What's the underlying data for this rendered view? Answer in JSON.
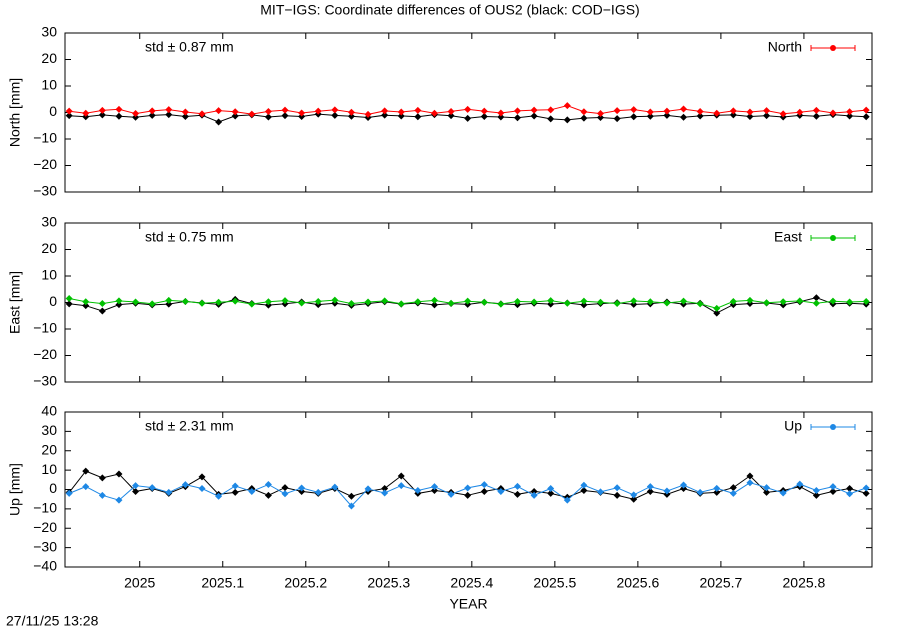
{
  "title": "MIT−IGS: Coordinate differences of OUS2 (black: COD−IGS)",
  "timestamp": "27/11/25 13:28",
  "chart_data": [
    {
      "type": "line",
      "ylabel": "North [mm]",
      "annotation": "std ± 0.87 mm",
      "annotation_color": "#ff0000",
      "show_xtick_labels": false,
      "x": [
        2024.915,
        2024.935,
        2024.955,
        2024.975,
        2024.995,
        2025.015,
        2025.035,
        2025.055,
        2025.075,
        2025.095,
        2025.115,
        2025.135,
        2025.155,
        2025.175,
        2025.195,
        2025.215,
        2025.235,
        2025.255,
        2025.275,
        2025.295,
        2025.315,
        2025.335,
        2025.355,
        2025.375,
        2025.395,
        2025.415,
        2025.435,
        2025.455,
        2025.475,
        2025.495,
        2025.515,
        2025.535,
        2025.555,
        2025.575,
        2025.595,
        2025.615,
        2025.635,
        2025.655,
        2025.675,
        2025.695,
        2025.715,
        2025.735,
        2025.755,
        2025.775,
        2025.795,
        2025.815,
        2025.835,
        2025.855,
        2025.875
      ],
      "series": [
        {
          "color": "#000000",
          "values": [
            -1.2,
            -1.6,
            -0.9,
            -1.4,
            -1.8,
            -1.1,
            -0.8,
            -1.5,
            -1.0,
            -3.6,
            -1.3,
            -0.9,
            -1.7,
            -1.2,
            -1.5,
            -0.6,
            -1.1,
            -1.4,
            -1.9,
            -1.0,
            -1.3,
            -1.6,
            -0.8,
            -1.2,
            -2.2,
            -1.5,
            -1.7,
            -2.0,
            -1.3,
            -2.4,
            -2.8,
            -2.1,
            -1.9,
            -2.3,
            -1.6,
            -1.4,
            -1.1,
            -1.8,
            -1.3,
            -1.0,
            -0.9,
            -1.5,
            -1.2,
            -1.7,
            -1.1,
            -1.4,
            -0.8,
            -1.3,
            -1.6
          ]
        },
        {
          "name": "North",
          "color": "#ff0000",
          "values": [
            0.5,
            -0.3,
            0.8,
            1.2,
            -0.4,
            0.6,
            1.1,
            0.2,
            -0.5,
            0.7,
            0.3,
            -0.6,
            0.4,
            0.9,
            -0.2,
            0.5,
            1.0,
            0.1,
            -0.7,
            0.6,
            0.2,
            0.8,
            -0.3,
            0.4,
            1.2,
            0.5,
            -0.2,
            0.6,
            0.9,
            1.0,
            2.6,
            0.3,
            -0.4,
            0.7,
            1.1,
            0.2,
            0.5,
            1.3,
            0.4,
            -0.3,
            0.6,
            0.2,
            0.7,
            -0.5,
            0.1,
            0.8,
            -0.2,
            0.3,
            0.9
          ]
        }
      ],
      "xlim": [
        2024.91,
        2025.882
      ],
      "xticks": [
        2025,
        2025.1,
        2025.2,
        2025.3,
        2025.4,
        2025.5,
        2025.6,
        2025.7,
        2025.8
      ],
      "ylim": [
        -30,
        30
      ],
      "yticks": [
        {
          "value": -30,
          "label": "−30"
        },
        {
          "value": -20,
          "label": "−20"
        },
        {
          "value": -10,
          "label": "−10"
        },
        0,
        10,
        20,
        30
      ]
    },
    {
      "type": "line",
      "ylabel": "East [mm]",
      "annotation": "std ± 0.75 mm",
      "annotation_color": "#00c000",
      "show_xtick_labels": false,
      "x": [
        2024.915,
        2024.935,
        2024.955,
        2024.975,
        2024.995,
        2025.015,
        2025.035,
        2025.055,
        2025.075,
        2025.095,
        2025.115,
        2025.135,
        2025.155,
        2025.175,
        2025.195,
        2025.215,
        2025.235,
        2025.255,
        2025.275,
        2025.295,
        2025.315,
        2025.335,
        2025.355,
        2025.375,
        2025.395,
        2025.415,
        2025.435,
        2025.455,
        2025.475,
        2025.495,
        2025.515,
        2025.535,
        2025.555,
        2025.575,
        2025.595,
        2025.615,
        2025.635,
        2025.655,
        2025.675,
        2025.695,
        2025.715,
        2025.735,
        2025.755,
        2025.775,
        2025.795,
        2025.815,
        2025.835,
        2025.855,
        2025.875
      ],
      "series": [
        {
          "color": "#000000",
          "values": [
            -0.5,
            -1.2,
            -3.2,
            -0.8,
            -0.3,
            -0.9,
            -0.6,
            0.4,
            -0.2,
            -0.7,
            1.2,
            -0.4,
            -1.0,
            -0.5,
            0.2,
            -0.8,
            -0.3,
            -1.1,
            -0.4,
            0.3,
            -0.6,
            -0.2,
            -0.9,
            -0.4,
            -0.7,
            0.1,
            -0.5,
            -0.8,
            -0.3,
            -0.6,
            -0.2,
            -0.9,
            -0.4,
            -0.1,
            -0.7,
            -0.5,
            0.2,
            -0.6,
            -0.3,
            -4.0,
            -0.8,
            -0.4,
            -0.2,
            -0.9,
            0.3,
            1.8,
            -0.5,
            -0.3,
            -0.6
          ]
        },
        {
          "name": "East",
          "color": "#00c000",
          "values": [
            1.5,
            0.3,
            -0.4,
            0.6,
            0.2,
            -0.5,
            0.8,
            0.4,
            -0.3,
            0.1,
            0.5,
            -0.6,
            0.3,
            0.7,
            -0.2,
            0.4,
            0.9,
            -0.4,
            0.2,
            0.6,
            -0.5,
            0.3,
            0.8,
            -0.3,
            0.5,
            0.1,
            -0.6,
            0.4,
            0.2,
            0.7,
            -0.3,
            0.5,
            0.1,
            -0.4,
            0.6,
            0.3,
            -0.2,
            0.5,
            -0.5,
            -2.2,
            0.4,
            0.8,
            -0.1,
            0.3,
            0.6,
            -0.3,
            0.5,
            0.2,
            0.4
          ]
        }
      ],
      "xlim": [
        2024.91,
        2025.882
      ],
      "xticks": [
        2025,
        2025.1,
        2025.2,
        2025.3,
        2025.4,
        2025.5,
        2025.6,
        2025.7,
        2025.8
      ],
      "ylim": [
        -30,
        30
      ],
      "yticks": [
        {
          "value": -30,
          "label": "−30"
        },
        {
          "value": -20,
          "label": "−20"
        },
        {
          "value": -10,
          "label": "−10"
        },
        0,
        10,
        20,
        30
      ]
    },
    {
      "type": "line",
      "ylabel": "Up [mm]",
      "xlabel": "YEAR",
      "annotation": "std ± 2.31 mm",
      "annotation_color": "#1e88e5",
      "show_xtick_labels": true,
      "x": [
        2024.915,
        2024.935,
        2024.955,
        2024.975,
        2024.995,
        2025.015,
        2025.035,
        2025.055,
        2025.075,
        2025.095,
        2025.115,
        2025.135,
        2025.155,
        2025.175,
        2025.195,
        2025.215,
        2025.235,
        2025.255,
        2025.275,
        2025.295,
        2025.315,
        2025.335,
        2025.355,
        2025.375,
        2025.395,
        2025.415,
        2025.435,
        2025.455,
        2025.475,
        2025.495,
        2025.515,
        2025.535,
        2025.555,
        2025.575,
        2025.595,
        2025.615,
        2025.635,
        2025.655,
        2025.675,
        2025.695,
        2025.715,
        2025.735,
        2025.755,
        2025.775,
        2025.795,
        2025.815,
        2025.835,
        2025.855,
        2025.875
      ],
      "series": [
        {
          "color": "#000000",
          "values": [
            -1.5,
            9.5,
            6.0,
            8.0,
            -1.0,
            0.5,
            -2.0,
            1.5,
            6.5,
            -2.5,
            -1.5,
            0.5,
            -3.0,
            1.0,
            -1.0,
            -2.0,
            0.5,
            -3.5,
            -1.0,
            0.5,
            7.0,
            -2.0,
            -0.5,
            -1.5,
            -3.0,
            -1.0,
            0.5,
            -2.5,
            -1.0,
            -2.0,
            -4.0,
            -0.5,
            -1.5,
            -3.0,
            -5.0,
            -1.0,
            -2.5,
            0.5,
            -2.0,
            -1.5,
            1.0,
            7.0,
            -1.5,
            -0.5,
            1.5,
            -3.0,
            -1.0,
            0.5,
            -2.0
          ]
        },
        {
          "name": "Up",
          "color": "#1e88e5",
          "values": [
            -2.0,
            1.5,
            -3.0,
            -5.5,
            2.0,
            1.0,
            -1.5,
            2.5,
            0.5,
            -3.5,
            1.8,
            -1.0,
            2.6,
            -2.2,
            0.8,
            -1.5,
            1.2,
            -8.5,
            0.3,
            -1.8,
            2.0,
            -0.5,
            1.5,
            -2.5,
            0.8,
            2.5,
            -1.0,
            1.6,
            -3.0,
            0.5,
            -5.5,
            2.2,
            -1.2,
            0.9,
            -2.8,
            1.5,
            -0.8,
            2.3,
            -1.5,
            0.6,
            -2.0,
            3.5,
            1.0,
            -1.8,
            2.8,
            -0.5,
            1.5,
            -2.2,
            0.8
          ]
        }
      ],
      "xlim": [
        2024.91,
        2025.882
      ],
      "xticks": [
        2025,
        2025.1,
        2025.2,
        2025.3,
        2025.4,
        2025.5,
        2025.6,
        2025.7,
        2025.8
      ],
      "ylim": [
        -40,
        40
      ],
      "yticks": [
        {
          "value": -40,
          "label": "−40"
        },
        {
          "value": -30,
          "label": "−30"
        },
        {
          "value": -20,
          "label": "−20"
        },
        {
          "value": -10,
          "label": "−10"
        },
        0,
        10,
        20,
        30,
        40
      ]
    }
  ]
}
